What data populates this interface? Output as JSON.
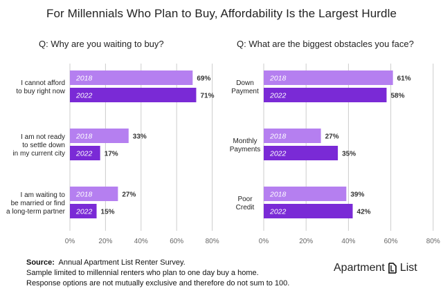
{
  "title": "For Millennials Who Plan to Buy, Affordability Is the Largest Hurdle",
  "colors": {
    "y2018": "#b57ff0",
    "y2022": "#7a2ad6",
    "grid": "#cccccc",
    "axis_text": "#666666"
  },
  "chart_data": [
    {
      "type": "bar",
      "orientation": "horizontal",
      "title": "Q: Why are you waiting to buy?",
      "categories": [
        [
          "I cannot afford",
          "to buy right now"
        ],
        [
          "I am not ready",
          "to settle down",
          "in my current city"
        ],
        [
          "I am waiting to",
          "be married or find",
          "a long-term partner"
        ]
      ],
      "series": [
        {
          "name": "2018",
          "values": [
            69,
            33,
            27
          ]
        },
        {
          "name": "2022",
          "values": [
            71,
            17,
            15
          ]
        }
      ],
      "value_suffix": "%",
      "xlim": [
        0,
        80
      ],
      "xticks": [
        "0%",
        "20%",
        "40%",
        "60%",
        "80%"
      ],
      "grid": true
    },
    {
      "type": "bar",
      "orientation": "horizontal",
      "title": "Q: What are the biggest obstacles you face?",
      "categories": [
        [
          "Down",
          "Payment"
        ],
        [
          "Monthly",
          "Payments"
        ],
        [
          "Poor",
          "Credit"
        ]
      ],
      "series": [
        {
          "name": "2018",
          "values": [
            61,
            27,
            39
          ]
        },
        {
          "name": "2022",
          "values": [
            58,
            35,
            42
          ]
        }
      ],
      "value_suffix": "%",
      "xlim": [
        0,
        80
      ],
      "xticks": [
        "0%",
        "20%",
        "40%",
        "60%",
        "80%"
      ],
      "grid": true
    }
  ],
  "footer": {
    "source_label": "Source:",
    "source_text": "Annual Apartment List Renter Survey.",
    "note1": "Sample limited to millennial renters who plan to one day buy a home.",
    "note2": "Response options are not mutually exclusive and therefore do not sum to 100."
  },
  "logo": {
    "word1": "Apartment",
    "word2": "List"
  }
}
